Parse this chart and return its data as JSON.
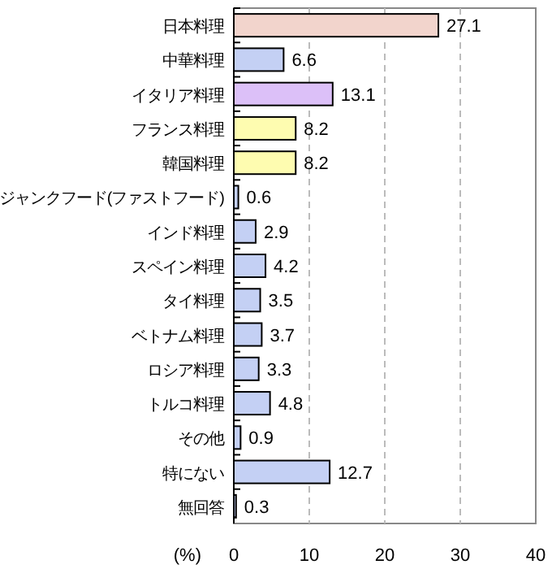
{
  "chart_data": {
    "type": "bar",
    "orientation": "horizontal",
    "xlabel": "(%)",
    "categories": [
      "日本料理",
      "中華料理",
      "イタリア料理",
      "フランス料理",
      "韓国料理",
      "ジャンクフード(ファストフード)",
      "インド料理",
      "スペイン料理",
      "タイ料理",
      "ベトナム料理",
      "ロシア料理",
      "トルコ料理",
      "その他",
      "特にない",
      "無回答"
    ],
    "values": [
      27.1,
      6.6,
      13.1,
      8.2,
      8.2,
      0.6,
      2.9,
      4.2,
      3.5,
      3.7,
      3.3,
      4.8,
      0.9,
      12.7,
      0.3
    ],
    "colors": [
      "#f2d4cc",
      "#c4d0f4",
      "#dcc0f8",
      "#fefcb0",
      "#fefcb0",
      "#c4d0f4",
      "#c4d0f4",
      "#c4d0f4",
      "#c4d0f4",
      "#c4d0f4",
      "#c4d0f4",
      "#c4d0f4",
      "#c4d0f4",
      "#c4d0f4",
      "#c4d0f4"
    ],
    "xlim": [
      0,
      40
    ],
    "xticks": [
      0,
      10,
      20,
      30,
      40
    ],
    "grid": "x",
    "data_labels": true
  }
}
